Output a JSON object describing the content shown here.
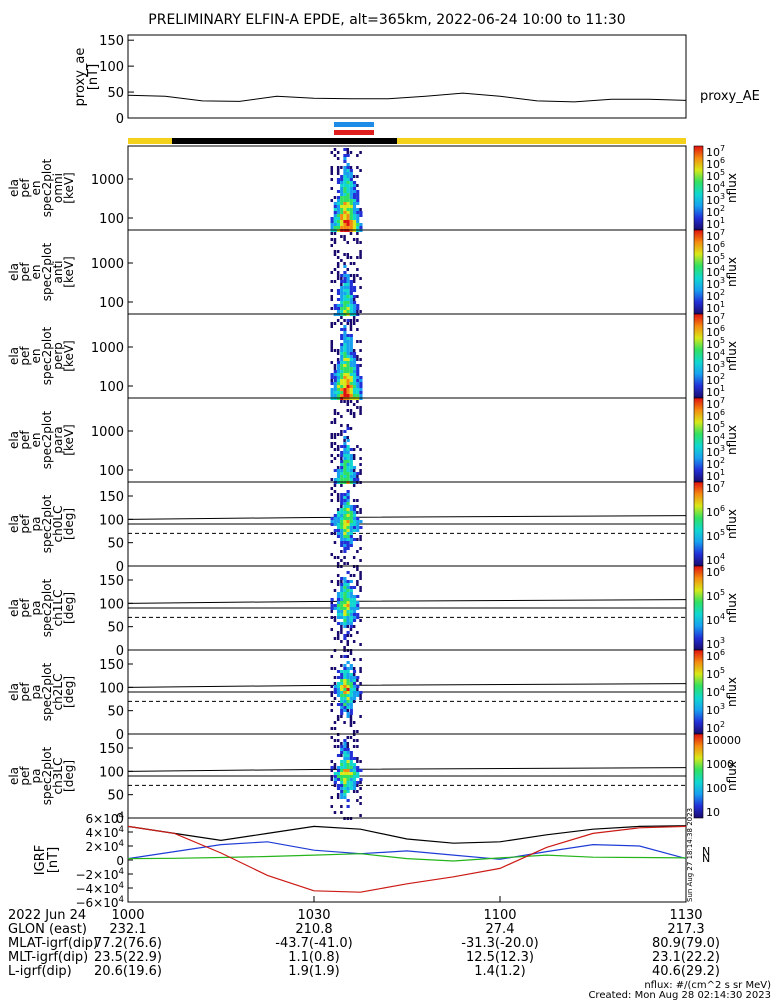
{
  "title": "PRELIMINARY ELFIN-A EPDE, alt=365km, 2022-06-24 10:00 to 11:30",
  "colors": {
    "gold": "#f4d21b",
    "black": "#000000",
    "blue_bar": "#1e8be6",
    "red_bar": "#e01e1e",
    "grf_black": "#000000",
    "grf_blue": "#1f3dd6",
    "grf_green": "#25b41a",
    "grf_red": "#cc1a14"
  },
  "proxy_ae": {
    "ylabel_lines": [
      "proxy_ae",
      "[nT]"
    ],
    "legend": "proxy_AE",
    "yticks": [
      "150",
      "100",
      "50",
      "0"
    ],
    "x_min": [
      0,
      6,
      12,
      18,
      24,
      30,
      36,
      42,
      48,
      54,
      60,
      66,
      72,
      78,
      84,
      90
    ],
    "values": [
      44,
      42,
      33,
      32,
      42,
      38,
      37,
      37,
      42,
      48,
      42,
      33,
      31,
      36,
      36,
      34
    ]
  },
  "panels": [
    {
      "id": "en-omni",
      "ylabel_lines": [
        "ela",
        "pef",
        "en",
        "spec2plot",
        "omni",
        "[keV]"
      ],
      "yticks": [
        "1000",
        "100"
      ],
      "cbar_label": "nflux",
      "cbar_ticks": [
        "10^7",
        "10^6",
        "10^5",
        "10^4",
        "10^3",
        "10^2",
        "10^1"
      ]
    },
    {
      "id": "en-anti",
      "ylabel_lines": [
        "ela",
        "pef",
        "en",
        "spec2plot",
        "anti",
        "[keV]"
      ],
      "yticks": [
        "1000",
        "100"
      ],
      "cbar_label": "nflux",
      "cbar_ticks": [
        "10^7",
        "10^6",
        "10^5",
        "10^4",
        "10^3",
        "10^2",
        "10^1"
      ]
    },
    {
      "id": "en-perp",
      "ylabel_lines": [
        "ela",
        "pef",
        "en",
        "spec2plot",
        "perp",
        "[keV]"
      ],
      "yticks": [
        "1000",
        "100"
      ],
      "cbar_label": "nflux",
      "cbar_ticks": [
        "10^7",
        "10^6",
        "10^5",
        "10^4",
        "10^3",
        "10^2",
        "10^1"
      ]
    },
    {
      "id": "en-para",
      "ylabel_lines": [
        "ela",
        "pef",
        "en",
        "spec2plot",
        "para",
        "[keV]"
      ],
      "yticks": [
        "1000",
        "100"
      ],
      "cbar_label": "nflux",
      "cbar_ticks": [
        "10^7",
        "10^6",
        "10^5",
        "10^4",
        "10^3",
        "10^2",
        "10^1"
      ]
    },
    {
      "id": "pa-ch0",
      "ylabel_lines": [
        "ela",
        "pef",
        "pa",
        "spec2plot",
        "ch0LC",
        "[deg]"
      ],
      "yticks": [
        "150",
        "100",
        "50",
        "0"
      ],
      "cbar_label": "nflux",
      "cbar_ticks": [
        "10^7",
        "10^6",
        "10^5",
        "10^4"
      ]
    },
    {
      "id": "pa-ch1",
      "ylabel_lines": [
        "ela",
        "pef",
        "pa",
        "spec2plot",
        "ch1LC",
        "[deg]"
      ],
      "yticks": [
        "150",
        "100",
        "50",
        "0"
      ],
      "cbar_label": "nflux",
      "cbar_ticks": [
        "10^6",
        "10^5",
        "10^4",
        "10^3"
      ]
    },
    {
      "id": "pa-ch2",
      "ylabel_lines": [
        "ela",
        "pef",
        "pa",
        "spec2plot",
        "ch2LC",
        "[deg]"
      ],
      "yticks": [
        "150",
        "100",
        "50",
        "0"
      ],
      "cbar_label": "nflux",
      "cbar_ticks": [
        "10^6",
        "10^5",
        "10^4",
        "10^3",
        "10^2"
      ]
    },
    {
      "id": "pa-ch3",
      "ylabel_lines": [
        "ela",
        "pef",
        "pa",
        "spec2plot",
        "ch3LC",
        "[deg]"
      ],
      "yticks": [
        "150",
        "100",
        "50",
        "0"
      ],
      "cbar_label": "nflux",
      "cbar_ticks": [
        "10000",
        "1000",
        "100",
        "10"
      ]
    }
  ],
  "grf": {
    "ylabel_lines": [
      "IGRF",
      "[nT]"
    ],
    "yticks": [
      "6×10^4",
      "4×10^4",
      "2×10^4",
      "0",
      "−2×10^4",
      "−4×10^4",
      "−6×10^4"
    ],
    "side_text": "Sun Aug 27 18:14:38 2023",
    "legend": [
      "N",
      "N"
    ]
  },
  "xaxis": {
    "date": "2022 Jun 24",
    "ticks": [
      "1000",
      "1030",
      "1100",
      "1130"
    ],
    "rows": [
      {
        "label": "GLON (east)",
        "values": [
          "232.1",
          "210.8",
          "27.4",
          "217.3"
        ]
      },
      {
        "label": "MLAT-igrf(dip)",
        "values": [
          "77.2(76.6)",
          "-43.7(-41.0)",
          "-31.3(-20.0)",
          "80.9(79.0)"
        ]
      },
      {
        "label": "MLT-igrf(dip)",
        "values": [
          "23.5(22.9)",
          "1.1(0.8)",
          "12.5(12.3)",
          "23.1(22.2)"
        ]
      },
      {
        "label": "L-igrf(dip)",
        "values": [
          "20.6(19.6)",
          "1.9(1.9)",
          "1.4(1.2)",
          "40.6(29.2)"
        ]
      }
    ]
  },
  "footer": {
    "units": "nflux: #/(cm^2 s sr MeV)",
    "created": "Created: Mon Aug 28 02:14:30 2023"
  },
  "chart_data": [
    {
      "type": "line",
      "title": "PRELIMINARY ELFIN-A EPDE, alt=365km, 2022-06-24 10:00 to 11:30",
      "ylabel": "proxy_ae [nT]",
      "ylim": [
        0,
        150
      ],
      "x": [
        0,
        6,
        12,
        18,
        24,
        30,
        36,
        42,
        48,
        54,
        60,
        66,
        72,
        78,
        84,
        90
      ],
      "series": [
        {
          "name": "proxy_AE",
          "values": [
            44,
            42,
            33,
            32,
            42,
            38,
            37,
            37,
            42,
            48,
            42,
            33,
            31,
            36,
            36,
            34
          ]
        }
      ]
    },
    {
      "type": "heatmap",
      "ylabel": "ela pef en spec2plot omni [keV]",
      "xlim": [
        "1000",
        "1130"
      ]
    },
    {
      "type": "heatmap",
      "ylabel": "ela pef en spec2plot anti [keV]"
    },
    {
      "type": "heatmap",
      "ylabel": "ela pef en spec2plot perp [keV]"
    },
    {
      "type": "heatmap",
      "ylabel": "ela pef en spec2plot para [keV]"
    },
    {
      "type": "heatmap",
      "ylabel": "ela pef pa spec2plot ch0LC [deg]",
      "ylim": [
        0,
        180
      ]
    },
    {
      "type": "heatmap",
      "ylabel": "ela pef pa spec2plot ch1LC [deg]",
      "ylim": [
        0,
        180
      ]
    },
    {
      "type": "heatmap",
      "ylabel": "ela pef pa spec2plot ch2LC [deg]",
      "ylim": [
        0,
        180
      ]
    },
    {
      "type": "heatmap",
      "ylabel": "ela pef pa spec2plot ch3LC [deg]",
      "ylim": [
        0,
        180
      ]
    },
    {
      "type": "line",
      "ylabel": "IGRF [nT]",
      "ylim": [
        -60000,
        60000
      ],
      "x": [
        0,
        7.5,
        15,
        22.5,
        30,
        37.5,
        45,
        52.5,
        60,
        67.5,
        75,
        82.5,
        90
      ],
      "series": [
        {
          "name": "black",
          "values": [
            48000,
            38000,
            28000,
            38000,
            48000,
            44000,
            30000,
            24000,
            26000,
            36000,
            44000,
            48000,
            49000
          ]
        },
        {
          "name": "blue",
          "values": [
            2000,
            12000,
            22000,
            26000,
            14000,
            9000,
            13000,
            7000,
            1000,
            12000,
            22000,
            20000,
            2000
          ]
        },
        {
          "name": "green",
          "values": [
            2000,
            2500,
            3500,
            5000,
            7000,
            9000,
            2000,
            -1500,
            3000,
            7000,
            4000,
            3500,
            3000
          ]
        },
        {
          "name": "red",
          "values": [
            48000,
            38000,
            10000,
            -22000,
            -44000,
            -46000,
            -34000,
            -24000,
            -12000,
            18000,
            38000,
            46000,
            48000
          ]
        }
      ]
    }
  ]
}
